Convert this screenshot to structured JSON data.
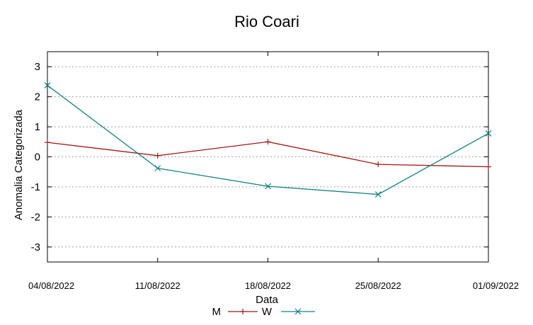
{
  "chart_data": {
    "type": "line",
    "title": "Rio Coari",
    "xlabel": "Data",
    "ylabel": "Anomalia Categorizada",
    "ylim": [
      -3.5,
      3.5
    ],
    "yticks": [
      3,
      2,
      1,
      0,
      -1,
      -2,
      -3
    ],
    "ytick_labels": [
      "3",
      "2",
      "1",
      "0",
      "-1",
      "-2",
      "-3"
    ],
    "categories": [
      "04/08/2022",
      "11/08/2022",
      "18/08/2022",
      "25/08/2022",
      "01/09/2022"
    ],
    "grid": true,
    "legend_position": "bottom-center",
    "series": [
      {
        "name": "M",
        "color": "#a01818",
        "marker": "plus",
        "values": [
          0.48,
          0.04,
          0.5,
          -0.25,
          -0.33
        ]
      },
      {
        "name": "W",
        "color": "#138080",
        "marker": "x",
        "values": [
          2.38,
          -0.38,
          -0.98,
          -1.25,
          0.78
        ]
      }
    ]
  }
}
